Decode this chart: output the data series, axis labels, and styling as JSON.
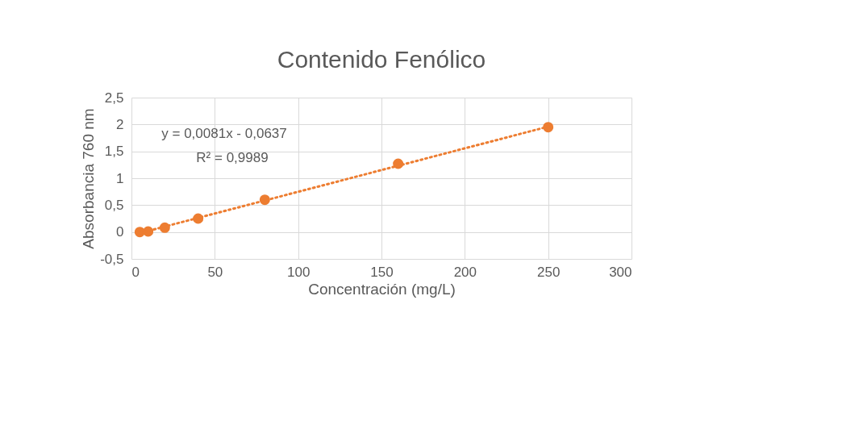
{
  "chart_data": {
    "type": "scatter",
    "title": "Contenido Fenólico",
    "xlabel": "Concentración (mg/L)",
    "ylabel": "Absorbancia 760 nm",
    "x": [
      5,
      10,
      20,
      40,
      80,
      160,
      250
    ],
    "series": [
      {
        "color": "#ed7d31",
        "values": [
          0.0,
          0.01,
          0.08,
          0.25,
          0.6,
          1.27,
          1.95
        ],
        "marker": "circle"
      },
      {
        "type": "line",
        "color": "#ed7d31",
        "x": [
          5,
          250
        ],
        "values": [
          -0.02,
          1.96
        ],
        "line_style": "dotted",
        "marker": "none"
      }
    ],
    "xlim": [
      0,
      300
    ],
    "xticks": [
      0,
      50,
      100,
      150,
      200,
      250,
      300
    ],
    "ylim": [
      -0.5,
      2.5
    ],
    "yticks": [
      {
        "value": -0.5,
        "label": "-0,5"
      },
      0,
      {
        "value": 0.5,
        "label": "0,5"
      },
      1,
      {
        "value": 1.5,
        "label": "1,5"
      },
      2,
      {
        "value": 2.5,
        "label": "2,5"
      }
    ],
    "grid": true,
    "annotations": [
      "y = 0,0081x - 0,0637",
      "R² = 0,9989"
    ]
  }
}
